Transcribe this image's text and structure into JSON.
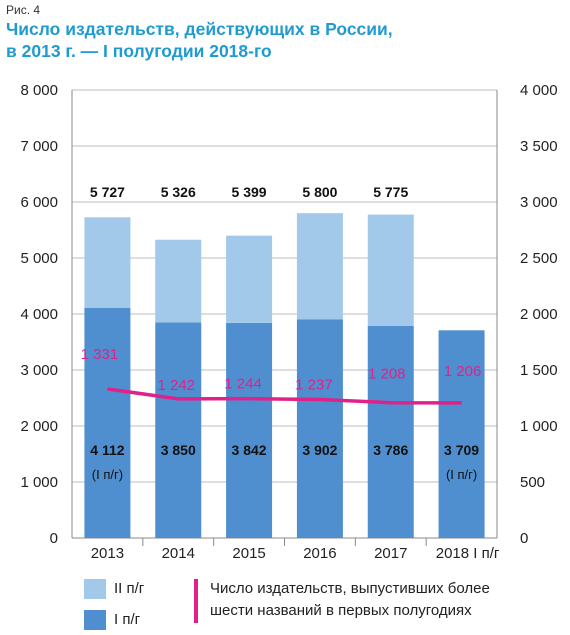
{
  "figure_label": "Рис. 4",
  "title_line1": "Число издательств, действующих в России,",
  "title_line2": "в 2013 г. — I полугодии 2018-го",
  "legend": {
    "h2_label": "II п/г",
    "h1_label": "I п/г",
    "line_label_1": "Число издательств, выпустивших более",
    "line_label_2": "шести названий в первых полугодиях"
  },
  "colors": {
    "h1": "#4f8fcf",
    "h2": "#a3c9ea",
    "line": "#e0218a",
    "title": "#1f9bd0"
  },
  "chart_data": {
    "type": "bar",
    "stacked": true,
    "categories": [
      "2013",
      "2014",
      "2015",
      "2016",
      "2017",
      "2018 I п/г"
    ],
    "series": [
      {
        "name": "I п/г",
        "values": [
          4112,
          3850,
          3842,
          3902,
          3786,
          3709
        ]
      },
      {
        "name": "II п/г",
        "values": [
          1615,
          1476,
          1557,
          1898,
          1989,
          0
        ]
      }
    ],
    "totals": [
      5727,
      5326,
      5399,
      5800,
      5775,
      null
    ],
    "total_labels": [
      "5 727",
      "5 326",
      "5 399",
      "5 800",
      "5 775",
      ""
    ],
    "h1_labels": [
      "4 112",
      "3 850",
      "3 842",
      "3 902",
      "3 786",
      "3 709"
    ],
    "h1_notes": [
      "(I п/г)",
      "",
      "",
      "",
      "",
      "(I п/г)"
    ],
    "line_series": {
      "name": "Число издательств, выпустивших более шести названий в первых полугодиях",
      "axis": "right",
      "values": [
        1331,
        1242,
        1244,
        1237,
        1208,
        1206
      ],
      "labels": [
        "1 331",
        "1 242",
        "1 244",
        "1 237",
        "1 208",
        "1 206"
      ]
    },
    "left_axis": {
      "ylim": [
        0,
        8000
      ],
      "ticks": [
        "0",
        "1 000",
        "2 000",
        "3 000",
        "4 000",
        "5 000",
        "6 000",
        "7 000",
        "8 000"
      ]
    },
    "right_axis": {
      "ylim": [
        0,
        4000
      ],
      "ticks": [
        "0",
        "500",
        "1 000",
        "1 500",
        "2 000",
        "2 500",
        "3 000",
        "3 500",
        "4 000"
      ]
    },
    "grid": "horizontal",
    "legend_position": "bottom"
  }
}
